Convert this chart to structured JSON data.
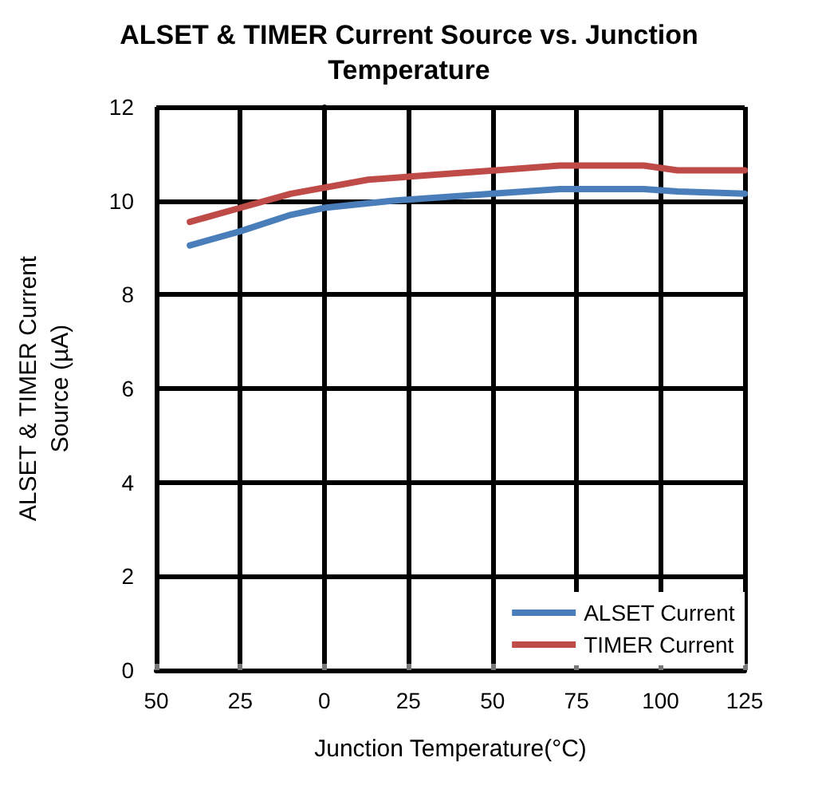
{
  "chart_data": {
    "type": "line",
    "title": "ALSET & TIMER Current Source vs. Junction Temperature",
    "xlabel": "Junction Temperature(°C)",
    "ylabel": "ALSET & TIMER Current Source (µA)",
    "series": [
      {
        "name": "ALSET Current",
        "color": "#4a7ebb",
        "x": [
          -40,
          -25,
          -10,
          0,
          20,
          50,
          70,
          95,
          105,
          125
        ],
        "values": [
          9.05,
          9.35,
          9.7,
          9.85,
          10.0,
          10.15,
          10.25,
          10.25,
          10.2,
          10.15
        ]
      },
      {
        "name": "TIMER Current",
        "color": "#be4b48",
        "x": [
          -40,
          -25,
          -10,
          13,
          32,
          51,
          70,
          95,
          105,
          125
        ],
        "values": [
          9.55,
          9.85,
          10.15,
          10.45,
          10.55,
          10.65,
          10.75,
          10.75,
          10.65,
          10.65
        ]
      }
    ],
    "xlim": [
      -50,
      125
    ],
    "xticks": [
      {
        "value": -50,
        "label": "50"
      },
      {
        "value": -25,
        "label": "25"
      },
      0,
      25,
      50,
      75,
      100,
      125
    ],
    "ylim": [
      0,
      12
    ],
    "yticks": [
      0,
      2,
      4,
      6,
      8,
      10,
      12
    ],
    "grid": true,
    "legend": "bottom right",
    "marker": "none",
    "line_style": "solid"
  }
}
